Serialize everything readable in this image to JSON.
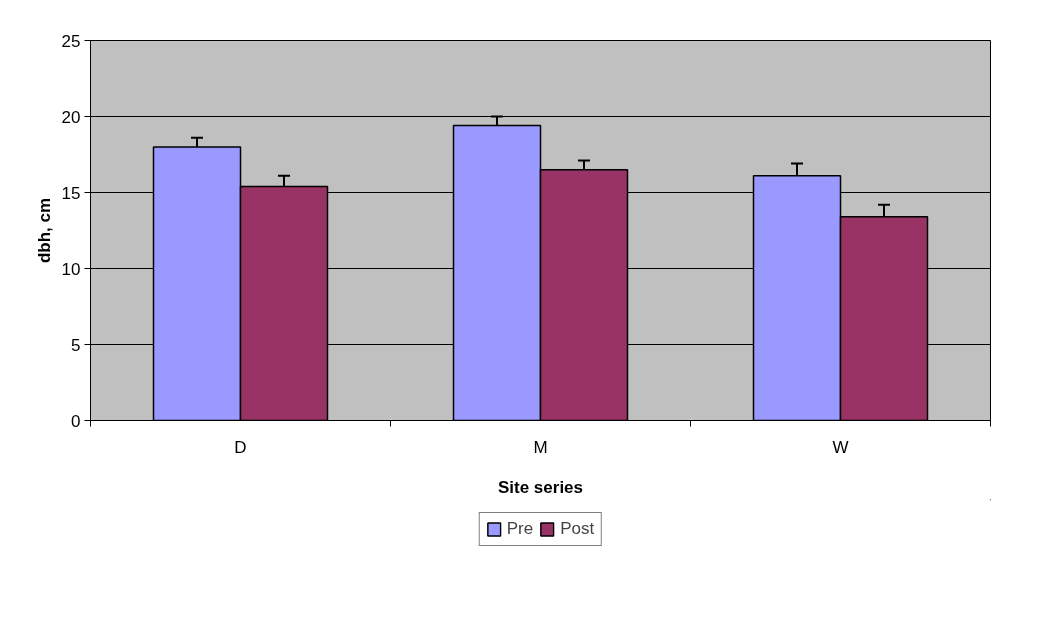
{
  "chart_data": {
    "type": "bar",
    "xlabel": "Site series",
    "ylabel": "dbh, cm",
    "categories": [
      "D",
      "M",
      "W"
    ],
    "series": [
      {
        "name": "Pre",
        "color": "#9999ff",
        "values": [
          18.0,
          19.4,
          16.1
        ],
        "errors": [
          0.6,
          0.6,
          0.8
        ]
      },
      {
        "name": "Post",
        "color": "#993366",
        "values": [
          15.4,
          16.5,
          13.4
        ],
        "errors": [
          0.7,
          0.6,
          0.8
        ]
      }
    ],
    "ylim": [
      0,
      25
    ],
    "yticks": [
      0,
      5,
      10,
      15,
      20,
      25
    ],
    "grid": "y",
    "legend": "bottom"
  }
}
